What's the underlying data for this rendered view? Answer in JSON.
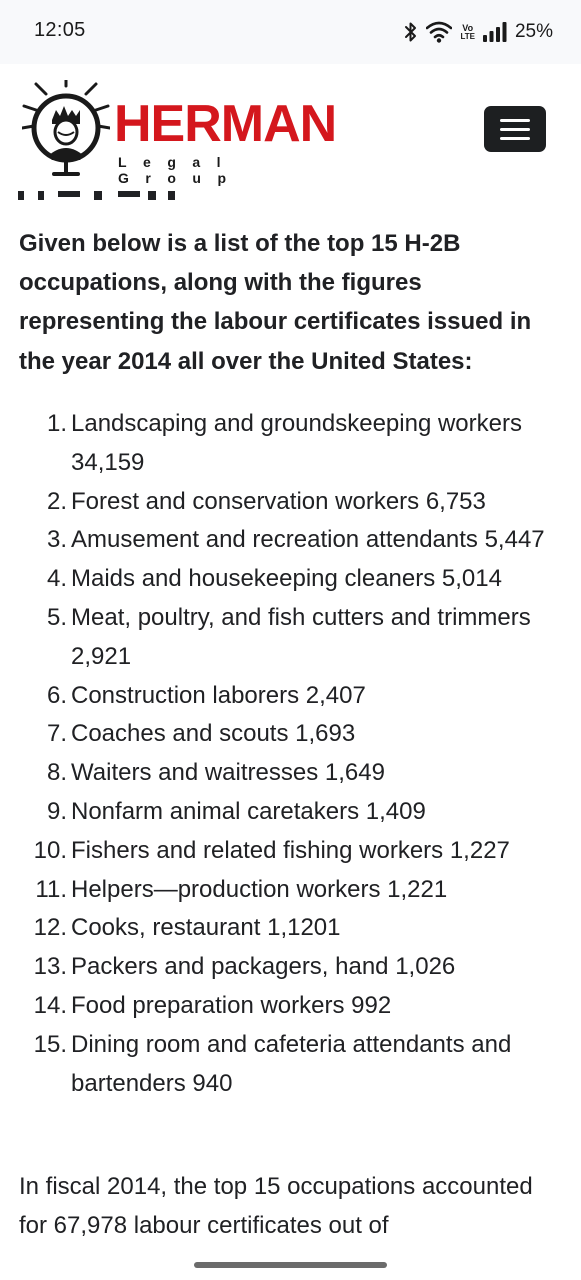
{
  "status_bar": {
    "time": "12:05",
    "battery": "25%",
    "icons": [
      "bluetooth-icon",
      "wifi-icon",
      "volte-icon",
      "signal-icon"
    ],
    "volte_top": "Vo",
    "volte_bottom": "LTE"
  },
  "header": {
    "brand_name": "HERMAN",
    "brand_sub": "Legal Group",
    "brand_color": "#d4171d",
    "menu_icon": "hamburger-icon"
  },
  "article": {
    "intro": "Given below is a list of the top 15 H-2B occupations, along with the figures representing the labour certificates issued in the year 2014 all over the United States:",
    "occupations": [
      {
        "num": "1.",
        "text": "Landscaping and groundskeeping workers 34,159"
      },
      {
        "num": "2.",
        "text": "Forest and conservation workers 6,753"
      },
      {
        "num": "3.",
        "text": "Amusement and recreation attendants 5,447"
      },
      {
        "num": "4.",
        "text": "Maids and housekeeping cleaners 5,014"
      },
      {
        "num": "5.",
        "text": "Meat, poultry, and fish cutters and trimmers 2,921"
      },
      {
        "num": "6.",
        "text": "Construction laborers 2,407"
      },
      {
        "num": "7.",
        "text": "Coaches and scouts 1,693"
      },
      {
        "num": "8.",
        "text": "Waiters and waitresses 1,649"
      },
      {
        "num": "9.",
        "text": "Nonfarm animal caretakers 1,409"
      },
      {
        "num": "10.",
        "text": "Fishers and related fishing workers 1,227"
      },
      {
        "num": "11.",
        "text": "Helpers—production workers 1,221"
      },
      {
        "num": "12.",
        "text": "Cooks, restaurant 1,1201"
      },
      {
        "num": "13.",
        "text": "Packers and packagers, hand 1,026"
      },
      {
        "num": "14.",
        "text": "Food preparation workers 992"
      },
      {
        "num": "15.",
        "text": "Dining room and cafeteria attendants and bartenders 940"
      }
    ],
    "closing": "In fiscal 2014, the top 15 occupations accounted for 67,978 labour certificates out of"
  }
}
